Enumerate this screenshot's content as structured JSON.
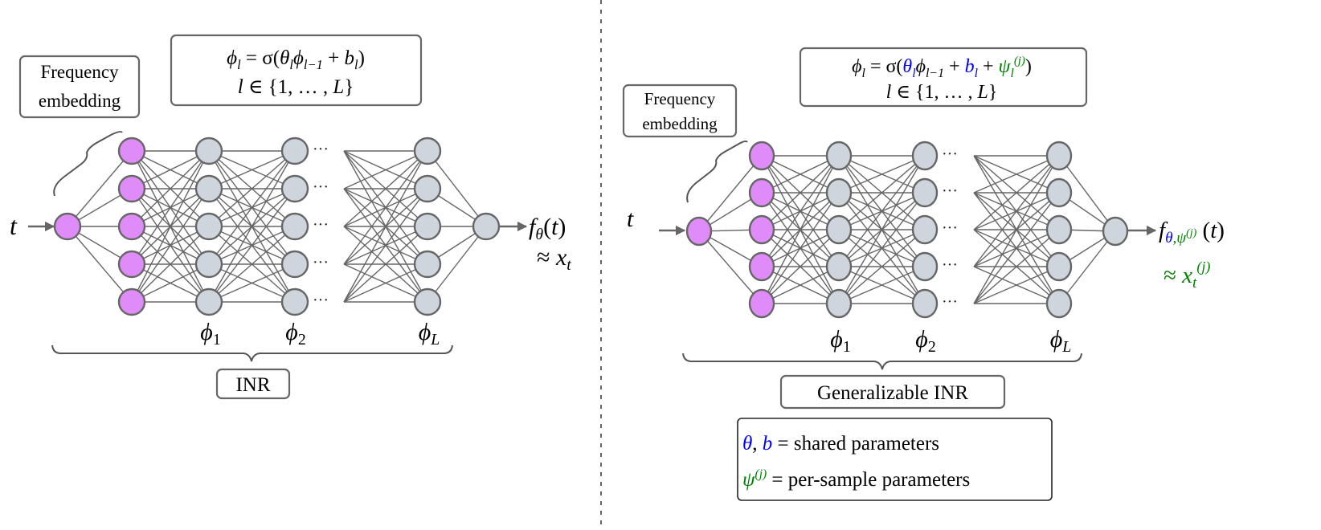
{
  "colors": {
    "embedding_node": "#df8bf8",
    "hidden_node": "#cfd5dd",
    "node_stroke": "#666666",
    "edge": "#666666",
    "shared_param": "#0000ff",
    "per_sample_param": "#008000"
  },
  "left_panel": {
    "freq_label": [
      "Frequency",
      "embedding"
    ],
    "formula_line1": [
      {
        "t": "ϕ",
        "it": true
      },
      {
        "t": "l",
        "sub": true,
        "it": true
      },
      {
        "t": " = σ("
      },
      {
        "t": "θ",
        "it": true
      },
      {
        "t": "l",
        "sub": true,
        "it": true
      },
      {
        "t": "ϕ",
        "it": true
      },
      {
        "t": "l−1",
        "sub": true,
        "it": true
      },
      {
        "t": " + "
      },
      {
        "t": "b",
        "it": true
      },
      {
        "t": "l",
        "sub": true,
        "it": true
      },
      {
        "t": ")"
      }
    ],
    "formula_line2": [
      {
        "t": "l",
        "it": true
      },
      {
        "t": " ∈ {1, … , "
      },
      {
        "t": "L",
        "it": true
      },
      {
        "t": "}"
      }
    ],
    "input_label": "t",
    "output_label": [
      {
        "t": "f",
        "it": true
      },
      {
        "t": "θ",
        "sub": true,
        "it": true
      },
      {
        "t": "("
      },
      {
        "t": "t",
        "it": true
      },
      {
        "t": ")"
      }
    ],
    "approx_label": [
      {
        "t": "≈ "
      },
      {
        "t": "x",
        "it": true
      },
      {
        "t": "t",
        "sub": true,
        "it": true
      }
    ],
    "layer_labels": [
      [
        {
          "t": "ϕ",
          "it": true
        },
        {
          "t": "1",
          "sub": true
        }
      ],
      [
        {
          "t": "ϕ",
          "it": true
        },
        {
          "t": "2",
          "sub": true
        }
      ],
      [
        {
          "t": "ϕ",
          "it": true
        },
        {
          "t": "L",
          "sub": true,
          "it": true
        }
      ]
    ],
    "title": "INR",
    "ellipsis": "···"
  },
  "right_panel": {
    "freq_label": [
      "Frequency",
      "embedding"
    ],
    "formula_line1": [
      {
        "t": "ϕ",
        "it": true
      },
      {
        "t": "l",
        "sub": true,
        "it": true
      },
      {
        "t": " = σ("
      },
      {
        "t": "θ",
        "it": true,
        "color": "#0000ff"
      },
      {
        "t": "l",
        "sub": true,
        "it": true,
        "color": "#0000ff"
      },
      {
        "t": "ϕ",
        "it": true
      },
      {
        "t": "l−1",
        "sub": true,
        "it": true
      },
      {
        "t": " + "
      },
      {
        "t": "b",
        "it": true,
        "color": "#0000ff"
      },
      {
        "t": "l",
        "sub": true,
        "it": true,
        "color": "#0000ff"
      },
      {
        "t": " + "
      },
      {
        "t": "ψ",
        "it": true,
        "color": "#008000"
      },
      {
        "t": "l",
        "sub": true,
        "it": true,
        "color": "#008000"
      },
      {
        "t": "(j)",
        "sup": true,
        "it": true,
        "color": "#008000"
      },
      {
        "t": ")"
      }
    ],
    "formula_line2": [
      {
        "t": "l",
        "it": true
      },
      {
        "t": " ∈ {1, … , "
      },
      {
        "t": "L",
        "it": true
      },
      {
        "t": "}"
      }
    ],
    "input_label": "t",
    "output_label": [
      {
        "t": "f",
        "it": true
      },
      {
        "t": "θ",
        "sub": true,
        "it": true,
        "color": "#0000ff"
      },
      {
        "t": ",ψ",
        "sub": true,
        "it": true,
        "color": "#008000"
      },
      {
        "t": "(j)",
        "sup2": true,
        "it": true,
        "color": "#008000"
      },
      {
        "t": " ("
      },
      {
        "t": "t",
        "it": true
      },
      {
        "t": ")"
      }
    ],
    "approx_label": [
      {
        "t": "≈ ",
        "color": "#008000"
      },
      {
        "t": "x",
        "it": true,
        "color": "#008000"
      },
      {
        "t": "t",
        "sub": true,
        "it": true,
        "color": "#008000"
      },
      {
        "t": "(j)",
        "supb": true,
        "it": true,
        "color": "#008000"
      }
    ],
    "layer_labels": [
      [
        {
          "t": "ϕ",
          "it": true
        },
        {
          "t": "1",
          "sub": true
        }
      ],
      [
        {
          "t": "ϕ",
          "it": true
        },
        {
          "t": "2",
          "sub": true
        }
      ],
      [
        {
          "t": "ϕ",
          "it": true
        },
        {
          "t": "L",
          "sub": true,
          "it": true
        }
      ]
    ],
    "title": "Generalizable INR",
    "ellipsis": "···",
    "legend": [
      [
        {
          "t": "θ",
          "it": true,
          "color": "#0000ff"
        },
        {
          "t": ", "
        },
        {
          "t": "b",
          "it": true,
          "color": "#0000ff"
        },
        {
          "t": " =  shared parameters"
        }
      ],
      [
        {
          "t": "ψ",
          "it": true,
          "color": "#008000"
        },
        {
          "t": "(j)",
          "sup": true,
          "it": true,
          "color": "#008000"
        },
        {
          "t": " =  per-sample parameters"
        }
      ]
    ]
  }
}
